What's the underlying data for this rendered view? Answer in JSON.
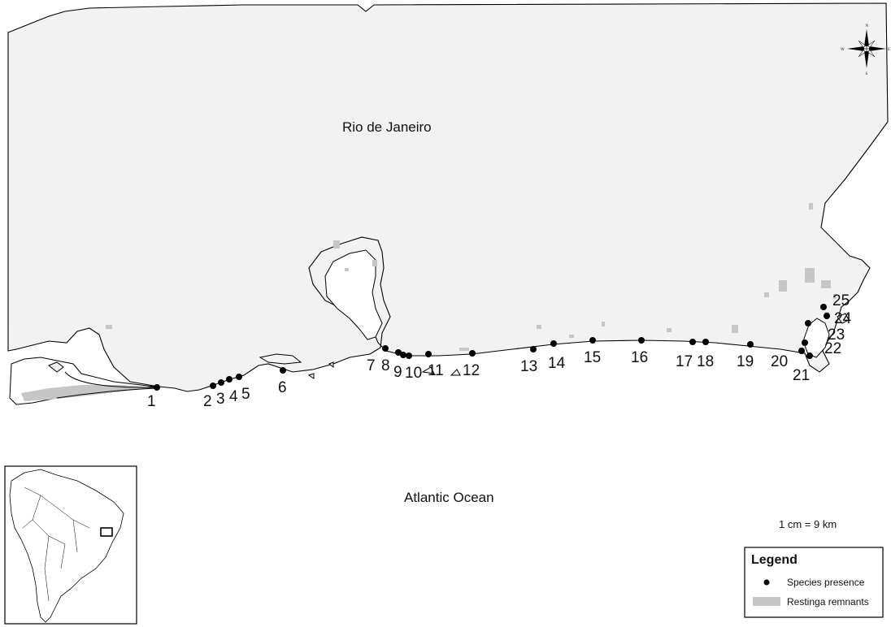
{
  "map": {
    "regions": {
      "land": "Rio de Janeiro",
      "ocean": "Atlantic Ocean"
    },
    "scale": "1 cm = 9 km",
    "legend": {
      "title": "Legend",
      "items": [
        {
          "label": "Species presence",
          "symbol": "black-dot"
        },
        {
          "label": "Restinga remnants",
          "symbol": "gray-box"
        }
      ]
    },
    "compass": {
      "n": "N",
      "s": "S",
      "e": "E",
      "w": "W"
    },
    "sites": [
      "1",
      "2",
      "3",
      "4",
      "5",
      "6",
      "7",
      "8",
      "9",
      "10",
      "11",
      "12",
      "13",
      "14",
      "15",
      "16",
      "17",
      "18",
      "19",
      "20",
      "21",
      "22",
      "23",
      "24",
      "25"
    ],
    "colors": {
      "land": "#f2f2f2",
      "ocean": "#ffffff",
      "coastline": "#000000",
      "restinga": "#c6c6c6",
      "sites": "#000000"
    },
    "inset": {
      "description_icon": "south-america-inset-map"
    }
  }
}
